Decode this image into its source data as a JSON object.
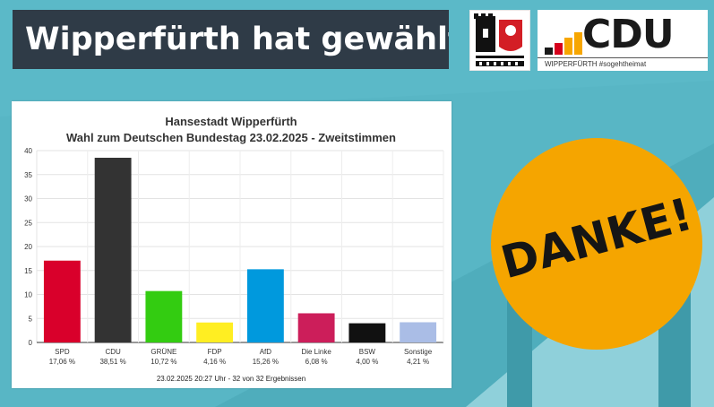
{
  "header": {
    "title": "Wipperfürth hat gewählt"
  },
  "logo": {
    "wordmark": "CDU",
    "tagline": "WIPPERFÜRTH #sogehtheimat"
  },
  "badge": {
    "text": "DANKE!"
  },
  "colors": {
    "background": "#5bb9c8",
    "header_bg": "#2f3b47",
    "badge": "#f5a500"
  },
  "chart_data": {
    "type": "bar",
    "title": "Hansestadt Wipperfürth",
    "subtitle": "Wahl zum Deutschen Bundestag 23.02.2025  - Zweitstimmen",
    "categories": [
      "SPD",
      "CDU",
      "GRÜNE",
      "FDP",
      "AfD",
      "Die Linke",
      "BSW",
      "Sonstige"
    ],
    "values": [
      17.06,
      38.51,
      10.72,
      4.16,
      15.26,
      6.08,
      4.0,
      4.21
    ],
    "value_labels": [
      "17,06 %",
      "38,51 %",
      "10,72 %",
      "4,16 %",
      "15,26 %",
      "6,08 %",
      "4,00 %",
      "4,21 %"
    ],
    "colors": [
      "#d9002b",
      "#333333",
      "#33cc11",
      "#ffee22",
      "#0099dd",
      "#cc1e5a",
      "#111111",
      "#aabde6"
    ],
    "ylim": [
      0,
      40
    ],
    "yticks": [
      "0",
      "5",
      "10",
      "15",
      "20",
      "25",
      "30",
      "35",
      "40"
    ],
    "grid": true,
    "footer": "23.02.2025 20:27 Uhr - 32 von 32 Ergebnissen"
  }
}
